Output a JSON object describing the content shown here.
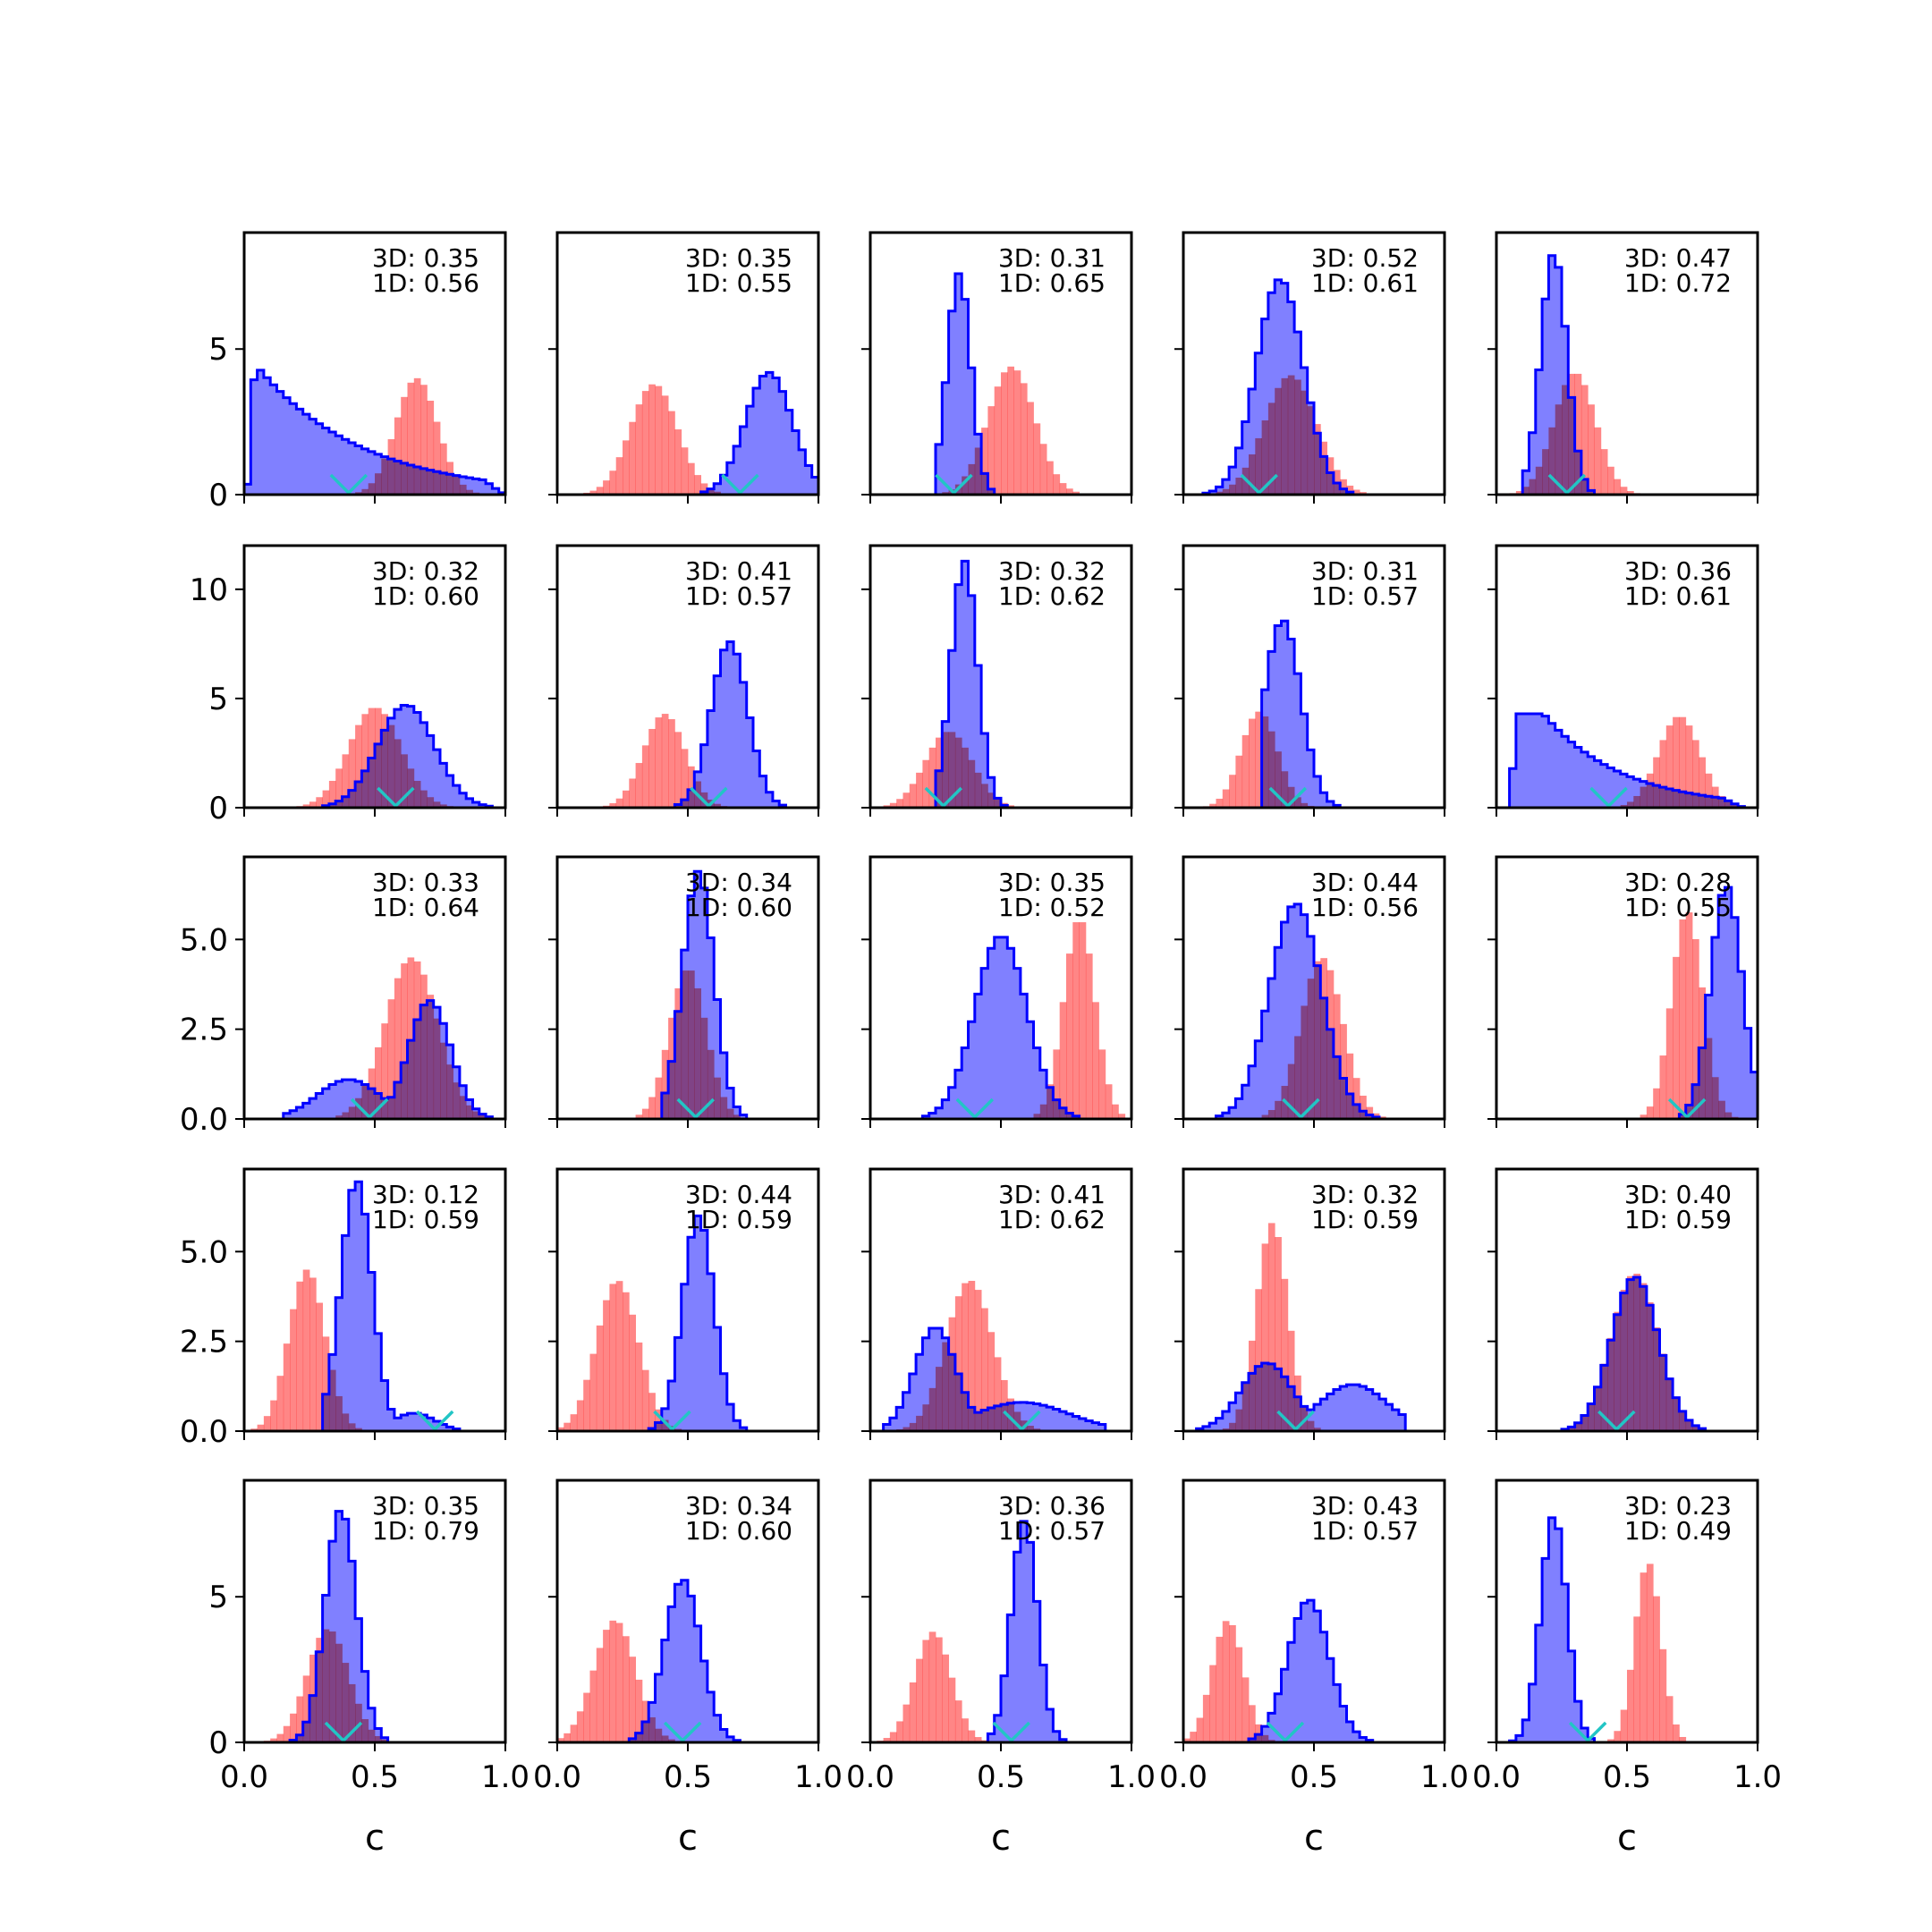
{
  "chart_data": {
    "type": "histogram-grid",
    "rows": 5,
    "cols": 5,
    "xlabel": "c",
    "xlim": [
      0,
      1
    ],
    "xticks": [
      0.0,
      0.5,
      1.0
    ],
    "xtick_labels": [
      "0.0",
      "0.5",
      "1.0"
    ],
    "series_names": [
      "3D",
      "1D"
    ],
    "colors": {
      "3D": "#0000ff",
      "3D_fill": "#8080ff",
      "1D": "#ff8080",
      "marker": "#22c5c5"
    },
    "row_axes": [
      {
        "ylim": [
          0,
          9.0
        ],
        "yticks": [
          0,
          5
        ],
        "ytick_labels": [
          "0",
          "5"
        ]
      },
      {
        "ylim": [
          0,
          12.0
        ],
        "yticks": [
          0,
          5,
          10
        ],
        "ytick_labels": [
          "0",
          "5",
          "10"
        ]
      },
      {
        "ylim": [
          0,
          7.3
        ],
        "yticks": [
          0.0,
          2.5,
          5.0
        ],
        "ytick_labels": [
          "0.0",
          "2.5",
          "5.0"
        ]
      },
      {
        "ylim": [
          0,
          7.3
        ],
        "yticks": [
          0.0,
          2.5,
          5.0
        ],
        "ytick_labels": [
          "0.0",
          "2.5",
          "5.0"
        ]
      },
      {
        "ylim": [
          0,
          9.0
        ],
        "yticks": [
          0,
          5
        ],
        "ytick_labels": [
          "0",
          "5"
        ]
      }
    ],
    "panels": [
      {
        "label_3d": "3D: 0.35",
        "label_1d": "1D: 0.56",
        "marker": 0.4,
        "d3": {
          "mu": 0.06,
          "sd": 0.45,
          "peak": 4.3,
          "range": [
            0.01,
            1.0
          ],
          "shape": "decay",
          "decay": 0.4
        },
        "d1": {
          "mu": 0.66,
          "sd": 0.08,
          "peak": 4.0,
          "range": [
            0.3,
            1.0
          ]
        }
      },
      {
        "label_3d": "3D: 0.35",
        "label_1d": "1D: 0.55",
        "marker": 0.7,
        "d3": {
          "mu": 0.81,
          "sd": 0.09,
          "peak": 4.2,
          "range": [
            0.45,
            1.0
          ]
        },
        "d1": {
          "mu": 0.37,
          "sd": 0.09,
          "peak": 3.8,
          "range": [
            0.1,
            0.75
          ]
        }
      },
      {
        "label_3d": "3D: 0.31",
        "label_1d": "1D: 0.65",
        "marker": 0.32,
        "d3": {
          "mu": 0.34,
          "sd": 0.045,
          "peak": 7.6,
          "range": [
            0.25,
            0.6
          ]
        },
        "d1": {
          "mu": 0.54,
          "sd": 0.09,
          "peak": 4.4,
          "range": [
            0.2,
            0.9
          ]
        }
      },
      {
        "label_3d": "3D: 0.52",
        "label_1d": "1D: 0.61",
        "marker": 0.29,
        "d3": {
          "mu": 0.37,
          "sd": 0.09,
          "peak": 7.4,
          "range": [
            0.01,
            0.7
          ]
        },
        "d1": {
          "mu": 0.41,
          "sd": 0.1,
          "peak": 4.1,
          "range": [
            0.1,
            0.85
          ]
        }
      },
      {
        "label_3d": "3D: 0.47",
        "label_1d": "1D: 0.72",
        "marker": 0.27,
        "d3": {
          "mu": 0.22,
          "sd": 0.05,
          "peak": 8.3,
          "range": [
            0.1,
            0.55
          ]
        },
        "d1": {
          "mu": 0.3,
          "sd": 0.08,
          "peak": 4.2,
          "range": [
            0.05,
            0.65
          ]
        }
      },
      {
        "label_3d": "3D: 0.32",
        "label_1d": "1D: 0.60",
        "marker": 0.58,
        "d3": {
          "mu": 0.62,
          "sd": 0.11,
          "peak": 4.7,
          "range": [
            0.25,
            0.95
          ]
        },
        "d1": {
          "mu": 0.5,
          "sd": 0.1,
          "peak": 4.6,
          "range": [
            0.15,
            0.85
          ]
        }
      },
      {
        "label_3d": "3D: 0.41",
        "label_1d": "1D: 0.57",
        "marker": 0.58,
        "d3": {
          "mu": 0.66,
          "sd": 0.07,
          "peak": 7.6,
          "range": [
            0.3,
            1.0
          ]
        },
        "d1": {
          "mu": 0.41,
          "sd": 0.08,
          "peak": 4.3,
          "range": [
            0.15,
            0.7
          ]
        }
      },
      {
        "label_3d": "3D: 0.32",
        "label_1d": "1D: 0.62",
        "marker": 0.28,
        "d3": {
          "mu": 0.36,
          "sd": 0.05,
          "peak": 11.3,
          "range": [
            0.25,
            0.65
          ]
        },
        "d1": {
          "mu": 0.3,
          "sd": 0.09,
          "peak": 3.5,
          "range": [
            0.0,
            0.55
          ]
        }
      },
      {
        "label_3d": "3D: 0.31",
        "label_1d": "1D: 0.57",
        "marker": 0.4,
        "d3": {
          "mu": 0.38,
          "sd": 0.07,
          "peak": 8.6,
          "range": [
            0.3,
            0.75
          ]
        },
        "d1": {
          "mu": 0.29,
          "sd": 0.07,
          "peak": 4.4,
          "range": [
            0.05,
            0.5
          ]
        }
      },
      {
        "label_3d": "3D: 0.36",
        "label_1d": "1D: 0.61",
        "marker": 0.43,
        "d3": {
          "mu": 0.18,
          "sd": 0.45,
          "peak": 4.3,
          "range": [
            0.05,
            0.95
          ],
          "shape": "decay",
          "decay": 0.3
        },
        "d1": {
          "mu": 0.7,
          "sd": 0.08,
          "peak": 4.2,
          "range": [
            0.4,
            1.0
          ]
        }
      },
      {
        "label_3d": "3D: 0.33",
        "label_1d": "1D: 0.64",
        "marker": 0.48,
        "d3": {
          "mu": 0.71,
          "sd": 0.08,
          "peak": 3.3,
          "range": [
            0.15,
            0.95
          ],
          "tail": {
            "mu": 0.4,
            "sd": 0.12,
            "peak": 1.1
          }
        },
        "d1": {
          "mu": 0.64,
          "sd": 0.1,
          "peak": 4.5,
          "range": [
            0.3,
            0.95
          ]
        }
      },
      {
        "label_3d": "3D: 0.34",
        "label_1d": "1D: 0.60",
        "marker": 0.53,
        "d3": {
          "mu": 0.54,
          "sd": 0.06,
          "peak": 6.9,
          "range": [
            0.4,
            0.85
          ]
        },
        "d1": {
          "mu": 0.5,
          "sd": 0.07,
          "peak": 4.2,
          "range": [
            0.2,
            0.8
          ]
        }
      },
      {
        "label_3d": "3D: 0.35",
        "label_1d": "1D: 0.52",
        "marker": 0.4,
        "d3": {
          "mu": 0.5,
          "sd": 0.1,
          "peak": 5.1,
          "range": [
            0.05,
            0.85
          ]
        },
        "d1": {
          "mu": 0.8,
          "sd": 0.06,
          "peak": 5.6,
          "range": [
            0.55,
            1.0
          ]
        }
      },
      {
        "label_3d": "3D: 0.44",
        "label_1d": "1D: 0.56",
        "marker": 0.45,
        "d3": {
          "mu": 0.43,
          "sd": 0.1,
          "peak": 6.0,
          "range": [
            0.0,
            0.8
          ]
        },
        "d1": {
          "mu": 0.53,
          "sd": 0.08,
          "peak": 4.5,
          "range": [
            0.25,
            0.8
          ]
        }
      },
      {
        "label_3d": "3D: 0.28",
        "label_1d": "1D: 0.55",
        "marker": 0.73,
        "d3": {
          "mu": 0.88,
          "sd": 0.06,
          "peak": 6.5,
          "range": [
            0.5,
            1.0
          ]
        },
        "d1": {
          "mu": 0.73,
          "sd": 0.06,
          "peak": 5.8,
          "range": [
            0.5,
            1.0
          ]
        }
      },
      {
        "label_3d": "3D: 0.12",
        "label_1d": "1D: 0.59",
        "marker": 0.73,
        "d3": {
          "mu": 0.43,
          "sd": 0.06,
          "peak": 7.0,
          "range": [
            0.3,
            0.85
          ],
          "tail": {
            "mu": 0.65,
            "sd": 0.08,
            "peak": 0.5
          }
        },
        "d1": {
          "mu": 0.24,
          "sd": 0.07,
          "peak": 4.5,
          "range": [
            0.0,
            0.55
          ]
        }
      },
      {
        "label_3d": "3D: 0.44",
        "label_1d": "1D: 0.59",
        "marker": 0.44,
        "d3": {
          "mu": 0.54,
          "sd": 0.06,
          "peak": 6.0,
          "range": [
            0.35,
            0.85
          ]
        },
        "d1": {
          "mu": 0.23,
          "sd": 0.08,
          "peak": 4.2,
          "range": [
            0.0,
            0.5
          ]
        }
      },
      {
        "label_3d": "3D: 0.41",
        "label_1d": "1D: 0.62",
        "marker": 0.58,
        "d3": {
          "mu": 0.25,
          "sd": 0.08,
          "peak": 2.9,
          "range": [
            0.05,
            0.9
          ],
          "tail": {
            "mu": 0.58,
            "sd": 0.18,
            "peak": 0.8
          }
        },
        "d1": {
          "mu": 0.38,
          "sd": 0.09,
          "peak": 4.2,
          "range": [
            0.1,
            0.75
          ]
        }
      },
      {
        "label_3d": "3D: 0.32",
        "label_1d": "1D: 0.59",
        "marker": 0.43,
        "d3": {
          "mu": 0.32,
          "sd": 0.1,
          "peak": 1.9,
          "range": [
            0.05,
            0.85
          ],
          "tail": {
            "mu": 0.65,
            "sd": 0.13,
            "peak": 1.3
          }
        },
        "d1": {
          "mu": 0.34,
          "sd": 0.06,
          "peak": 5.8,
          "range": [
            0.1,
            0.6
          ]
        }
      },
      {
        "label_3d": "3D: 0.40",
        "label_1d": "1D: 0.59",
        "marker": 0.46,
        "d3": {
          "mu": 0.53,
          "sd": 0.09,
          "peak": 4.3,
          "range": [
            0.1,
            0.9
          ]
        },
        "d1": {
          "mu": 0.53,
          "sd": 0.09,
          "peak": 4.4,
          "range": [
            0.2,
            0.85
          ]
        }
      },
      {
        "label_3d": "3D: 0.35",
        "label_1d": "1D: 0.79",
        "marker": 0.38,
        "d3": {
          "mu": 0.37,
          "sd": 0.06,
          "peak": 8.0,
          "range": [
            0.05,
            0.6
          ]
        },
        "d1": {
          "mu": 0.32,
          "sd": 0.08,
          "peak": 3.9,
          "range": [
            0.0,
            0.55
          ]
        }
      },
      {
        "label_3d": "3D: 0.34",
        "label_1d": "1D: 0.60",
        "marker": 0.48,
        "d3": {
          "mu": 0.48,
          "sd": 0.07,
          "peak": 5.6,
          "range": [
            0.05,
            0.7
          ]
        },
        "d1": {
          "mu": 0.22,
          "sd": 0.08,
          "peak": 4.2,
          "range": [
            0.0,
            0.45
          ]
        }
      },
      {
        "label_3d": "3D: 0.36",
        "label_1d": "1D: 0.57",
        "marker": 0.54,
        "d3": {
          "mu": 0.59,
          "sd": 0.05,
          "peak": 7.6,
          "range": [
            0.45,
            0.8
          ]
        },
        "d1": {
          "mu": 0.24,
          "sd": 0.07,
          "peak": 3.8,
          "range": [
            0.0,
            0.45
          ]
        }
      },
      {
        "label_3d": "3D: 0.43",
        "label_1d": "1D: 0.57",
        "marker": 0.39,
        "d3": {
          "mu": 0.48,
          "sd": 0.08,
          "peak": 4.9,
          "range": [
            0.0,
            0.75
          ]
        },
        "d1": {
          "mu": 0.17,
          "sd": 0.06,
          "peak": 4.2,
          "range": [
            0.0,
            0.4
          ]
        }
      },
      {
        "label_3d": "3D: 0.23",
        "label_1d": "1D: 0.49",
        "marker": 0.35,
        "d3": {
          "mu": 0.22,
          "sd": 0.05,
          "peak": 7.8,
          "range": [
            0.0,
            0.5
          ]
        },
        "d1": {
          "mu": 0.58,
          "sd": 0.05,
          "peak": 6.2,
          "range": [
            0.4,
            0.8
          ]
        }
      }
    ]
  }
}
